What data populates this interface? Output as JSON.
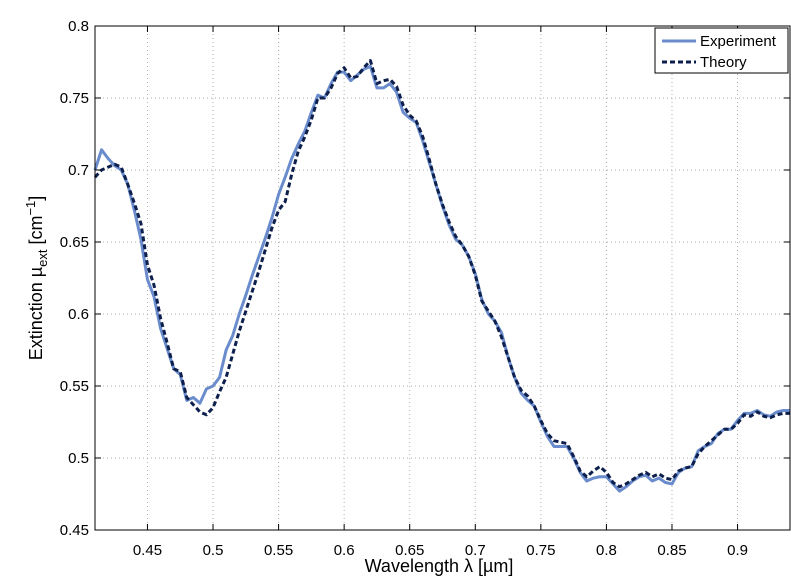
{
  "chart_data": {
    "type": "line",
    "title": "",
    "xlabel": "Wavelength λ [µm]",
    "ylabel_parts": {
      "main": "Extinction µ",
      "subscript": "ext",
      "unit_open": " [cm",
      "superscript": "−1",
      "unit_close": "]"
    },
    "xlim": [
      0.41,
      0.94
    ],
    "ylim": [
      0.45,
      0.8
    ],
    "xticks": [
      0.45,
      0.5,
      0.55,
      0.6,
      0.65,
      0.7,
      0.75,
      0.8,
      0.85,
      0.9
    ],
    "xtick_labels": [
      "0.45",
      "0.5",
      "0.55",
      "0.6",
      "0.65",
      "0.7",
      "0.75",
      "0.8",
      "0.85",
      "0.9"
    ],
    "yticks": [
      0.45,
      0.5,
      0.55,
      0.6,
      0.65,
      0.7,
      0.75,
      0.8
    ],
    "ytick_labels": [
      "0.45",
      "0.5",
      "0.55",
      "0.6",
      "0.65",
      "0.7",
      "0.75",
      "0.8"
    ],
    "grid": true,
    "legend_position": "top-right",
    "colors": {
      "experiment": "#6a8ccc",
      "theory": "#0d1f4d",
      "grid": "#b0b0b0",
      "axes": "#000000"
    },
    "series": [
      {
        "name": "Experiment",
        "style": "solid",
        "x": [
          0.41,
          0.415,
          0.42,
          0.425,
          0.43,
          0.435,
          0.44,
          0.445,
          0.45,
          0.455,
          0.46,
          0.465,
          0.47,
          0.475,
          0.48,
          0.485,
          0.49,
          0.495,
          0.5,
          0.505,
          0.51,
          0.515,
          0.52,
          0.525,
          0.53,
          0.535,
          0.54,
          0.545,
          0.55,
          0.555,
          0.56,
          0.565,
          0.57,
          0.575,
          0.58,
          0.585,
          0.59,
          0.595,
          0.6,
          0.605,
          0.61,
          0.615,
          0.62,
          0.625,
          0.63,
          0.635,
          0.64,
          0.645,
          0.65,
          0.655,
          0.66,
          0.665,
          0.67,
          0.675,
          0.68,
          0.685,
          0.69,
          0.695,
          0.7,
          0.705,
          0.71,
          0.715,
          0.72,
          0.725,
          0.73,
          0.735,
          0.74,
          0.745,
          0.75,
          0.755,
          0.76,
          0.765,
          0.77,
          0.775,
          0.78,
          0.785,
          0.79,
          0.795,
          0.8,
          0.805,
          0.81,
          0.815,
          0.82,
          0.825,
          0.83,
          0.835,
          0.84,
          0.845,
          0.85,
          0.855,
          0.86,
          0.865,
          0.87,
          0.875,
          0.88,
          0.885,
          0.89,
          0.895,
          0.9,
          0.905,
          0.91,
          0.915,
          0.92,
          0.925,
          0.93,
          0.935,
          0.94
        ],
        "values": [
          0.7,
          0.714,
          0.708,
          0.703,
          0.7,
          0.69,
          0.672,
          0.652,
          0.624,
          0.612,
          0.59,
          0.576,
          0.562,
          0.558,
          0.54,
          0.542,
          0.538,
          0.548,
          0.55,
          0.556,
          0.575,
          0.585,
          0.6,
          0.613,
          0.627,
          0.64,
          0.653,
          0.667,
          0.683,
          0.695,
          0.708,
          0.718,
          0.727,
          0.74,
          0.752,
          0.75,
          0.76,
          0.768,
          0.768,
          0.762,
          0.766,
          0.77,
          0.772,
          0.757,
          0.757,
          0.76,
          0.754,
          0.74,
          0.736,
          0.733,
          0.72,
          0.705,
          0.69,
          0.675,
          0.662,
          0.652,
          0.648,
          0.64,
          0.628,
          0.61,
          0.6,
          0.595,
          0.587,
          0.57,
          0.556,
          0.545,
          0.54,
          0.536,
          0.525,
          0.515,
          0.508,
          0.508,
          0.508,
          0.5,
          0.49,
          0.484,
          0.486,
          0.487,
          0.487,
          0.482,
          0.477,
          0.48,
          0.484,
          0.487,
          0.488,
          0.484,
          0.486,
          0.483,
          0.482,
          0.49,
          0.493,
          0.494,
          0.505,
          0.508,
          0.51,
          0.517,
          0.52,
          0.52,
          0.526,
          0.531,
          0.531,
          0.533,
          0.53,
          0.529,
          0.532,
          0.533,
          0.533
        ]
      },
      {
        "name": "Theory",
        "style": "dashed",
        "x": [
          0.41,
          0.415,
          0.42,
          0.425,
          0.43,
          0.435,
          0.44,
          0.445,
          0.45,
          0.455,
          0.46,
          0.465,
          0.47,
          0.475,
          0.48,
          0.485,
          0.49,
          0.495,
          0.5,
          0.505,
          0.51,
          0.515,
          0.52,
          0.525,
          0.53,
          0.535,
          0.54,
          0.545,
          0.55,
          0.555,
          0.56,
          0.565,
          0.57,
          0.575,
          0.58,
          0.585,
          0.59,
          0.595,
          0.6,
          0.605,
          0.61,
          0.615,
          0.62,
          0.625,
          0.63,
          0.635,
          0.64,
          0.645,
          0.65,
          0.655,
          0.66,
          0.665,
          0.67,
          0.675,
          0.68,
          0.685,
          0.69,
          0.695,
          0.7,
          0.705,
          0.71,
          0.715,
          0.72,
          0.725,
          0.73,
          0.735,
          0.74,
          0.745,
          0.75,
          0.755,
          0.76,
          0.765,
          0.77,
          0.775,
          0.78,
          0.785,
          0.79,
          0.795,
          0.8,
          0.805,
          0.81,
          0.815,
          0.82,
          0.825,
          0.83,
          0.835,
          0.84,
          0.845,
          0.85,
          0.855,
          0.86,
          0.865,
          0.87,
          0.875,
          0.88,
          0.885,
          0.89,
          0.895,
          0.9,
          0.905,
          0.91,
          0.915,
          0.92,
          0.925,
          0.93,
          0.935,
          0.94
        ],
        "values": [
          0.695,
          0.7,
          0.702,
          0.704,
          0.702,
          0.69,
          0.677,
          0.663,
          0.634,
          0.62,
          0.597,
          0.58,
          0.562,
          0.56,
          0.542,
          0.537,
          0.532,
          0.53,
          0.535,
          0.546,
          0.556,
          0.572,
          0.588,
          0.602,
          0.616,
          0.63,
          0.645,
          0.66,
          0.672,
          0.678,
          0.697,
          0.713,
          0.723,
          0.735,
          0.75,
          0.75,
          0.757,
          0.767,
          0.771,
          0.764,
          0.765,
          0.771,
          0.776,
          0.76,
          0.762,
          0.763,
          0.758,
          0.745,
          0.738,
          0.734,
          0.723,
          0.707,
          0.69,
          0.676,
          0.664,
          0.654,
          0.648,
          0.64,
          0.627,
          0.609,
          0.602,
          0.595,
          0.584,
          0.57,
          0.556,
          0.547,
          0.543,
          0.536,
          0.526,
          0.517,
          0.512,
          0.511,
          0.51,
          0.501,
          0.491,
          0.487,
          0.491,
          0.494,
          0.49,
          0.483,
          0.48,
          0.482,
          0.485,
          0.488,
          0.49,
          0.487,
          0.489,
          0.486,
          0.485,
          0.491,
          0.493,
          0.494,
          0.503,
          0.508,
          0.512,
          0.516,
          0.52,
          0.52,
          0.524,
          0.53,
          0.529,
          0.532,
          0.529,
          0.528,
          0.53,
          0.531,
          0.531
        ]
      }
    ]
  }
}
